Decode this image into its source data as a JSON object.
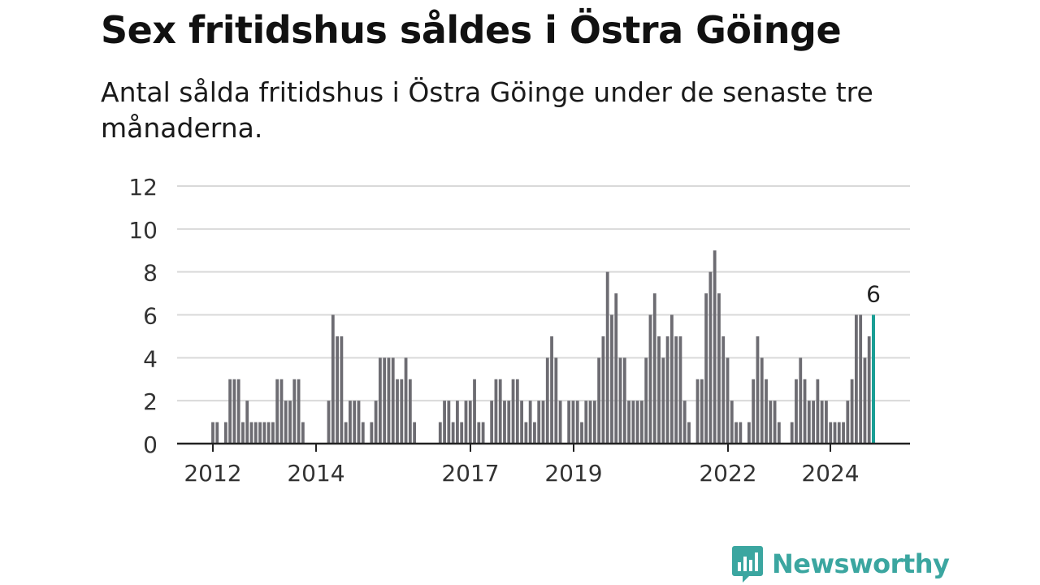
{
  "title": "Sex fritidshus såldes i Östra Göinge",
  "subtitle": "Antal sålda fritidshus i Östra Göinge under de senaste tre månaderna.",
  "brand": {
    "name": "Newsworthy",
    "color": "#3ba6a0"
  },
  "colors": {
    "bar": "#6d6c72",
    "highlight": "#1a9e95",
    "grid": "#d9d9d9",
    "axis": "#222222"
  },
  "chart_data": {
    "type": "bar",
    "ylim": [
      0,
      12
    ],
    "yticks": [
      0,
      2,
      4,
      6,
      8,
      10,
      12
    ],
    "xticks": [
      "2012",
      "2014",
      "2017",
      "2019",
      "2022",
      "2024"
    ],
    "grid": true,
    "highlight_label": "6",
    "values": [
      0,
      1,
      1,
      0,
      1,
      3,
      3,
      3,
      1,
      2,
      1,
      1,
      1,
      1,
      1,
      1,
      3,
      3,
      2,
      2,
      3,
      3,
      1,
      0,
      0,
      0,
      0,
      0,
      2,
      6,
      5,
      5,
      1,
      2,
      2,
      2,
      1,
      0,
      1,
      2,
      4,
      4,
      4,
      4,
      3,
      3,
      4,
      3,
      1,
      0,
      0,
      0,
      0,
      0,
      1,
      2,
      2,
      1,
      2,
      1,
      2,
      2,
      3,
      1,
      1,
      0,
      2,
      3,
      3,
      2,
      2,
      3,
      3,
      2,
      1,
      2,
      1,
      2,
      2,
      4,
      5,
      4,
      2,
      0,
      2,
      2,
      2,
      1,
      2,
      2,
      2,
      4,
      5,
      8,
      6,
      7,
      4,
      4,
      2,
      2,
      2,
      2,
      4,
      6,
      7,
      5,
      4,
      5,
      6,
      5,
      5,
      2,
      1,
      0,
      3,
      3,
      7,
      8,
      9,
      7,
      5,
      4,
      2,
      1,
      1,
      0,
      1,
      3,
      5,
      4,
      3,
      2,
      2,
      1,
      0,
      0,
      1,
      3,
      4,
      3,
      2,
      2,
      3,
      2,
      2,
      1,
      1,
      1,
      1,
      2,
      3,
      6,
      6,
      4,
      5,
      6
    ]
  }
}
